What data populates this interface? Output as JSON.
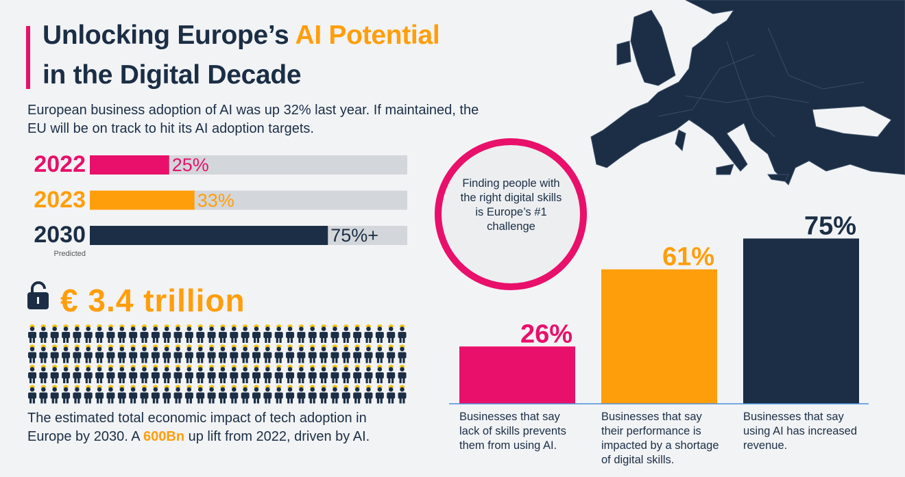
{
  "title": {
    "part1": "Unlocking Europe’s ",
    "highlight": "AI Potential",
    "line2": "in the Digital Decade"
  },
  "intro": "European business adoption of AI was up 32% last year. If maintained, the EU will be on track to hit its AI adoption targets.",
  "stat": {
    "value": "€ 3.4 trillion",
    "caption_start": "The estimated total economic impact of tech adoption in Europe by 2030. A ",
    "caption_highlight": "600Bn",
    "caption_end": " up lift from 2022, driven by AI."
  },
  "callout": "Finding people with the right digital skills is Europe’s #1 challenge",
  "chart_data": [
    {
      "type": "hbar",
      "categories": [
        "2022",
        "2023",
        "2030"
      ],
      "category_notes": [
        null,
        null,
        "Predicted"
      ],
      "values": [
        25,
        33,
        75
      ],
      "value_labels": [
        "25%",
        "33%",
        "75%+"
      ],
      "colors": [
        "#e8106a",
        "#ff9e0b",
        "#1b2e45"
      ],
      "track_color": "#d3d6da",
      "xlim": [
        0,
        100
      ]
    },
    {
      "type": "bar",
      "categories": [
        "Businesses that say lack of skills prevents them from using AI.",
        "Businesses that say their performance is impacted by a shortage of digital skills.",
        "Businesses that say using AI has increased revenue."
      ],
      "values": [
        26,
        61,
        75
      ],
      "value_labels": [
        "26%",
        "61%",
        "75%"
      ],
      "colors": [
        "#e8106a",
        "#ff9e0b",
        "#1b2e45"
      ],
      "baseline_color": "#4a90d9",
      "ylim": [
        0,
        100
      ]
    }
  ]
}
